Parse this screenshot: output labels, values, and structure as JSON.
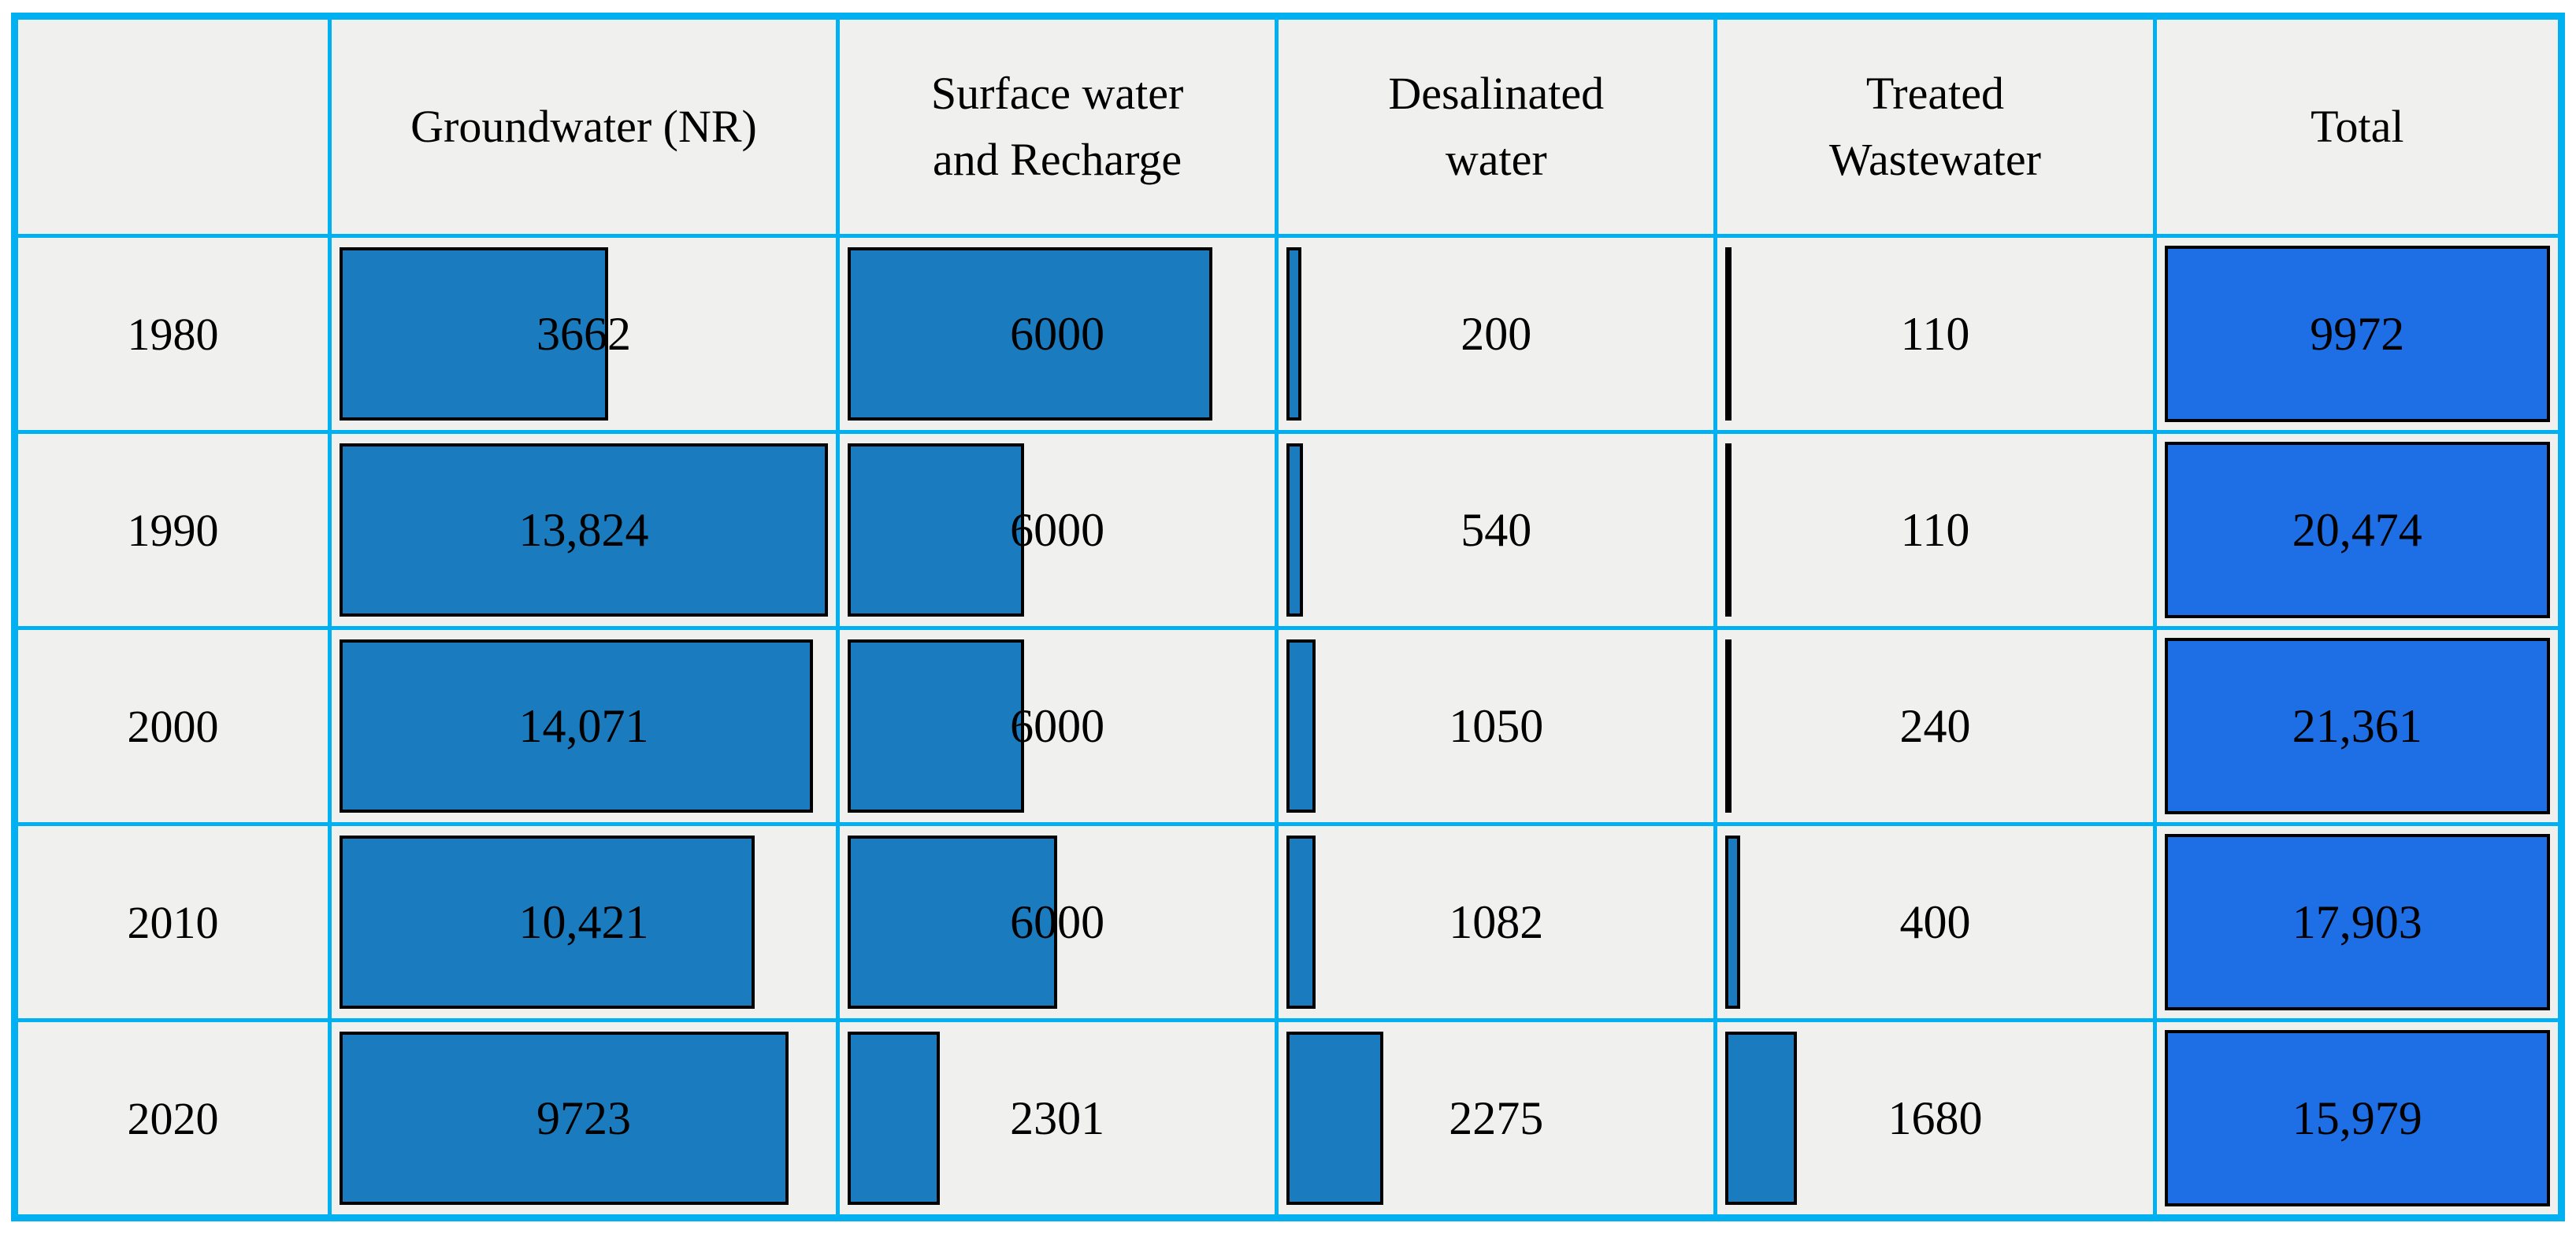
{
  "colors": {
    "grid": "#00b0f0",
    "cell-bg": "#f0f0ee",
    "bar": "#1a7cbe",
    "bar-border": "#000000",
    "total-fill": "#1e6ee6",
    "text": "#000000",
    "page-bg": "#ffffff"
  },
  "table": {
    "header": {
      "year": "",
      "groundwater": "Groundwater (NR)",
      "surface": "Surface water\nand Recharge",
      "desalinated": "Desalinated\nwater",
      "treated": "Treated\nWastewater",
      "total": "Total"
    },
    "rows": [
      {
        "year": "1980",
        "groundwater": {
          "display": "3662",
          "pct": 55
        },
        "surface": {
          "display": "6000",
          "pct": 87
        },
        "desalinated": {
          "display": "200",
          "pct": 3.5
        },
        "treated": {
          "display": "110",
          "pct": 1.5
        },
        "total": {
          "display": "9972",
          "pct": 100
        }
      },
      {
        "year": "1990",
        "groundwater": {
          "display": "13,824",
          "pct": 100
        },
        "surface": {
          "display": "6000",
          "pct": 42
        },
        "desalinated": {
          "display": "540",
          "pct": 4
        },
        "treated": {
          "display": "110",
          "pct": 1
        },
        "total": {
          "display": "20,474",
          "pct": 100
        }
      },
      {
        "year": "2000",
        "groundwater": {
          "display": "14,071",
          "pct": 97
        },
        "surface": {
          "display": "6000",
          "pct": 42
        },
        "desalinated": {
          "display": "1050",
          "pct": 7
        },
        "treated": {
          "display": "240",
          "pct": 1.5
        },
        "total": {
          "display": "21,361",
          "pct": 100
        }
      },
      {
        "year": "2010",
        "groundwater": {
          "display": "10,421",
          "pct": 85
        },
        "surface": {
          "display": "6000",
          "pct": 50
        },
        "desalinated": {
          "display": "1082",
          "pct": 7
        },
        "treated": {
          "display": "400",
          "pct": 3.5
        },
        "total": {
          "display": "17,903",
          "pct": 100
        }
      },
      {
        "year": "2020",
        "groundwater": {
          "display": "9723",
          "pct": 92
        },
        "surface": {
          "display": "2301",
          "pct": 22
        },
        "desalinated": {
          "display": "2275",
          "pct": 23
        },
        "treated": {
          "display": "1680",
          "pct": 17
        },
        "total": {
          "display": "15,979",
          "pct": 100
        }
      }
    ]
  },
  "chart_data": {
    "type": "table",
    "categories": [
      "1980",
      "1990",
      "2000",
      "2010",
      "2020"
    ],
    "series": [
      {
        "name": "Groundwater (NR)",
        "values": [
          3662,
          13824,
          14071,
          10421,
          9723
        ]
      },
      {
        "name": "Surface water and Recharge",
        "values": [
          6000,
          6000,
          6000,
          6000,
          2301
        ]
      },
      {
        "name": "Desalinated water",
        "values": [
          200,
          540,
          1050,
          1082,
          2275
        ]
      },
      {
        "name": "Treated Wastewater",
        "values": [
          110,
          110,
          240,
          400,
          1680
        ]
      },
      {
        "name": "Total",
        "values": [
          9972,
          20474,
          21361,
          17903,
          15979
        ]
      }
    ],
    "title": "",
    "xlabel": "",
    "ylabel": "",
    "notes": "Table with in-cell data bars; bar length scaled within each row, Total column cells fully filled"
  }
}
